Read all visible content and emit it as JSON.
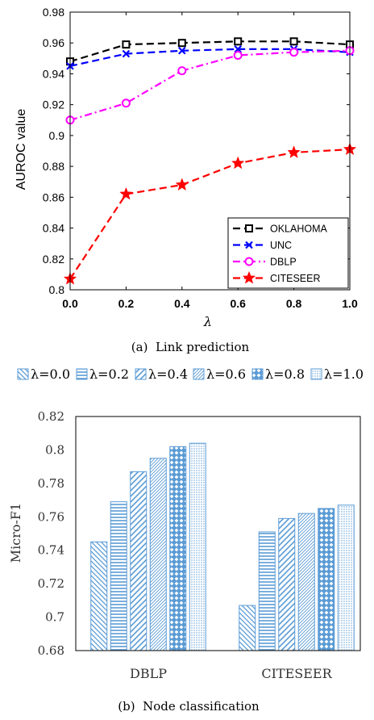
{
  "chart_data": [
    {
      "type": "line",
      "caption": "(a)  Link prediction",
      "xlabel": "λ",
      "ylabel": "AUROC value",
      "x": [
        0.0,
        0.2,
        0.4,
        0.6,
        0.8,
        1.0
      ],
      "x_ticks": [
        "0.0",
        "0.2",
        "0.4",
        "0.6",
        "0.8",
        "1.0"
      ],
      "xlim": [
        0.0,
        1.0
      ],
      "ylim": [
        0.8,
        0.98
      ],
      "y_ticks": [
        "0.8",
        "0.82",
        "0.84",
        "0.86",
        "0.88",
        "0.9",
        "0.92",
        "0.94",
        "0.96",
        "0.98"
      ],
      "grid": false,
      "legend_position": "bottom-right",
      "series": [
        {
          "name": "OKLAHOMA",
          "values": [
            0.948,
            0.959,
            0.96,
            0.961,
            0.961,
            0.959
          ],
          "color": "#000000",
          "marker": "square",
          "dash": "dashed"
        },
        {
          "name": "UNC",
          "values": [
            0.945,
            0.953,
            0.955,
            0.956,
            0.956,
            0.954
          ],
          "color": "#0000ff",
          "marker": "x",
          "dash": "dashed"
        },
        {
          "name": "DBLP",
          "values": [
            0.91,
            0.921,
            0.942,
            0.952,
            0.954,
            0.955
          ],
          "color": "#ff00ff",
          "marker": "circle",
          "dash": "dashdot"
        },
        {
          "name": "CITESEER",
          "values": [
            0.807,
            0.862,
            0.868,
            0.882,
            0.889,
            0.891
          ],
          "color": "#ff0000",
          "marker": "star",
          "dash": "dashed"
        }
      ]
    },
    {
      "type": "bar",
      "caption": "(b)  Node classification",
      "ylabel": "Micro-F1",
      "categories": [
        "DBLP",
        "CITESEER"
      ],
      "ylim": [
        0.68,
        0.82
      ],
      "y_ticks": [
        "0.68",
        "0.7",
        "0.72",
        "0.74",
        "0.76",
        "0.78",
        "0.8",
        "0.82"
      ],
      "legend_position": "top",
      "bar_color": "#5b9bd5",
      "series": [
        {
          "name": "λ=0.0",
          "values": [
            0.745,
            0.707
          ],
          "pattern": "diag-down"
        },
        {
          "name": "λ=0.2",
          "values": [
            0.769,
            0.751
          ],
          "pattern": "horizontal"
        },
        {
          "name": "λ=0.4",
          "values": [
            0.787,
            0.759
          ],
          "pattern": "diag-up-wide"
        },
        {
          "name": "λ=0.6",
          "values": [
            0.795,
            0.762
          ],
          "pattern": "diag-up-dense"
        },
        {
          "name": "λ=0.8",
          "values": [
            0.802,
            0.765
          ],
          "pattern": "diamonds"
        },
        {
          "name": "λ=1.0",
          "values": [
            0.804,
            0.767
          ],
          "pattern": "dots"
        }
      ]
    }
  ]
}
